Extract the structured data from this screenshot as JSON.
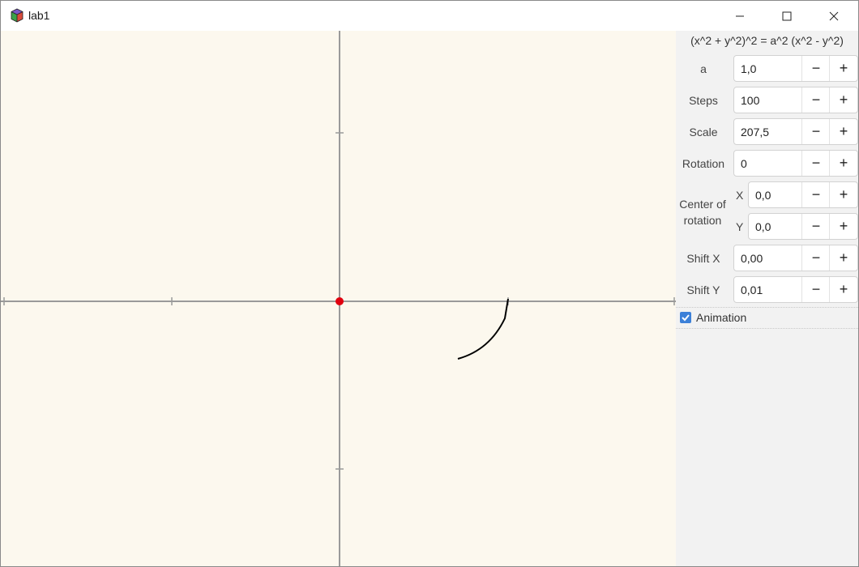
{
  "window": {
    "title": "lab1",
    "minimize_icon": "minimize-icon",
    "maximize_icon": "maximize-icon",
    "close_icon": "close-icon"
  },
  "canvas": {
    "background": "#fcf8ee",
    "axis_color": "#999999",
    "origin_color": "#e0000f",
    "curve_color": "#000000"
  },
  "panel": {
    "formula": "(x^2 + y^2)^2 = a^2 (x^2 - y^2)",
    "fields": {
      "a": {
        "label": "a",
        "value": "1,0"
      },
      "steps": {
        "label": "Steps",
        "value": "100"
      },
      "scale": {
        "label": "Scale",
        "value": "207,5"
      },
      "rotation": {
        "label": "Rotation",
        "value": "0"
      },
      "center_x": {
        "label": "X",
        "value": "0,0"
      },
      "center_y": {
        "label": "Y",
        "value": "0,0"
      },
      "shift_x": {
        "label": "Shift X",
        "value": "0,00"
      },
      "shift_y": {
        "label": "Shift Y",
        "value": "0,01"
      }
    },
    "center_of_rotation_label": "Center of rotation",
    "minus_label": "−",
    "plus_label": "+",
    "animation": {
      "label": "Animation",
      "checked": true,
      "accent": "#3c80d8"
    }
  }
}
